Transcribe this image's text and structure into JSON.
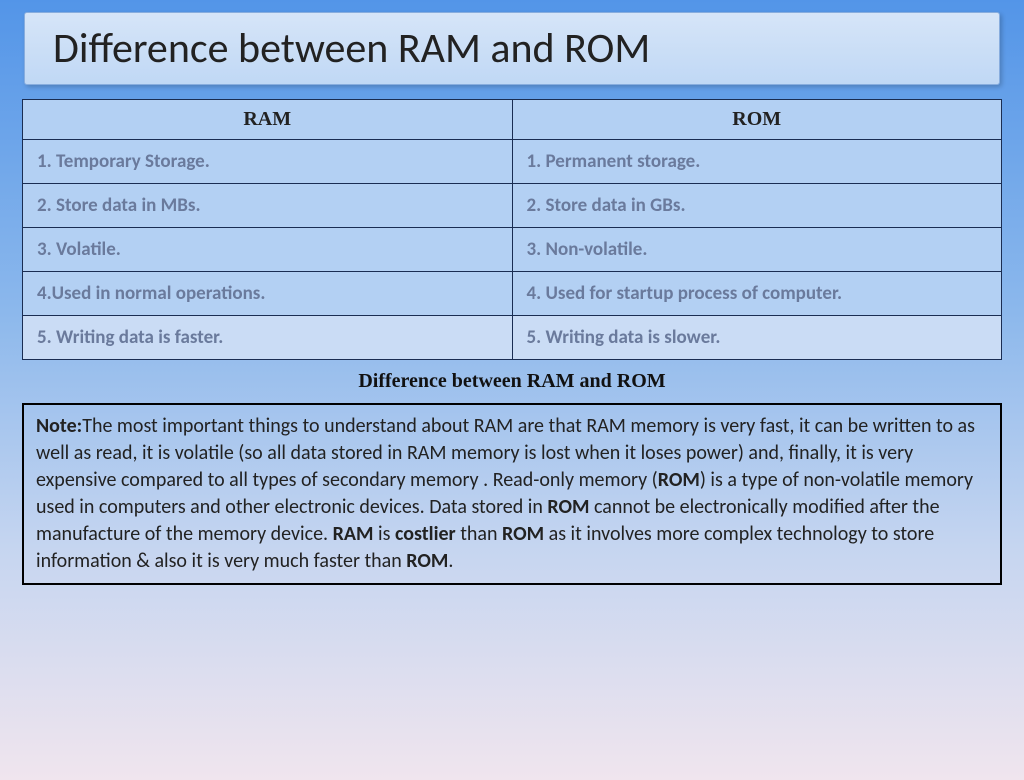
{
  "title": "Difference between RAM and ROM",
  "table": {
    "headers": {
      "col1": "RAM",
      "col2": "ROM"
    },
    "rows": [
      {
        "c1": "1. Temporary Storage.",
        "c2": "1. Permanent storage."
      },
      {
        "c1": "2. Store data in MBs.",
        "c2": "2. Store data in GBs."
      },
      {
        "c1": "3. Volatile.",
        "c2": "3. Non-volatile."
      },
      {
        "c1": "4.Used in normal operations.",
        "c2": "4. Used for startup process of computer."
      },
      {
        "c1": "5. Writing data is faster.",
        "c2": "5. Writing data is slower."
      }
    ],
    "colors": {
      "header_bg": "#b3d0f3",
      "row_bg": "#b3d0f3",
      "row_alt_bg": "#cadcf5",
      "border": "#1a2d52",
      "header_text": "#222222",
      "cell_text": "#6a7a9c"
    }
  },
  "caption": "Difference between RAM and ROM",
  "note": {
    "label": "Note:",
    "p1": "The most important things to understand about RAM are that RAM memory is very fast, it can be written to as well as read, it is volatile (so all data stored in RAM memory is lost when it loses power) and, finally, it is very expensive compared to all types of secondary memory . Read-only memory (",
    "b1": "ROM",
    "p2": ") is a type of non-volatile memory used in computers and other electronic devices. Data stored in ",
    "b2": "ROM",
    "p3": " cannot be electronically modified after the manufacture of the memory device. ",
    "b3": "RAM",
    "p4": " is ",
    "b4": "costlier",
    "p5": " than ",
    "b5": "ROM",
    "p6": " as it involves more complex technology to store information & also it is very much faster than ",
    "b6": "ROM",
    "p7": "."
  },
  "style": {
    "bg_gradient_top": "#5395e8",
    "bg_gradient_bottom": "#f0e5ee",
    "title_bg_top": "#d6e5f8",
    "title_bg_bottom": "#c0d8f5",
    "title_fontsize": 42,
    "cell_fontsize": 19,
    "note_fontsize": 20
  }
}
